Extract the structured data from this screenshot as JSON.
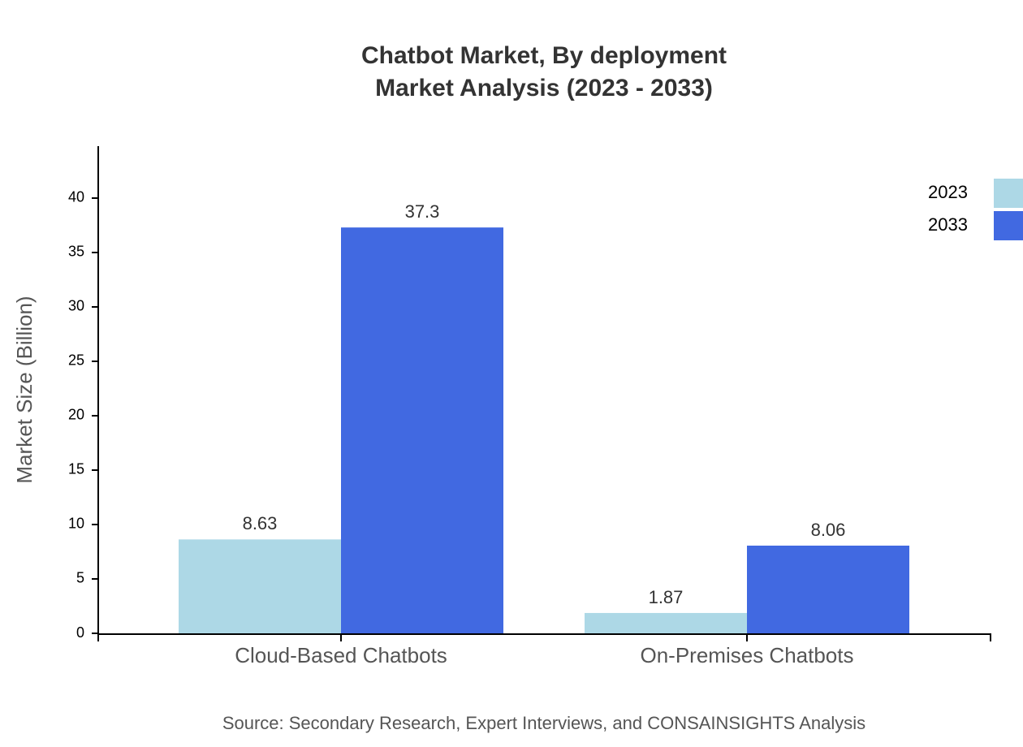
{
  "chart_data": {
    "type": "bar",
    "title": "Chatbot Market, By deployment",
    "subtitle": "Market Analysis (2023 - 2033)",
    "y_label": "Market Size (Billion)",
    "source": "Source: Secondary Research, Expert Interviews, and CONSAINSIGHTS Analysis",
    "categories": [
      "Cloud-Based Chatbots",
      "On-Premises Chatbots"
    ],
    "series": [
      {
        "name": "2023",
        "color": "#add8e6",
        "values": [
          8.63,
          1.87
        ]
      },
      {
        "name": "2033",
        "color": "#4169e1",
        "values": [
          37.3,
          8.06
        ]
      }
    ],
    "ylim": [
      0,
      44.7
    ],
    "yticks": [
      0,
      5,
      10,
      15,
      20,
      25,
      30,
      35,
      40
    ],
    "legend": "top-right"
  }
}
